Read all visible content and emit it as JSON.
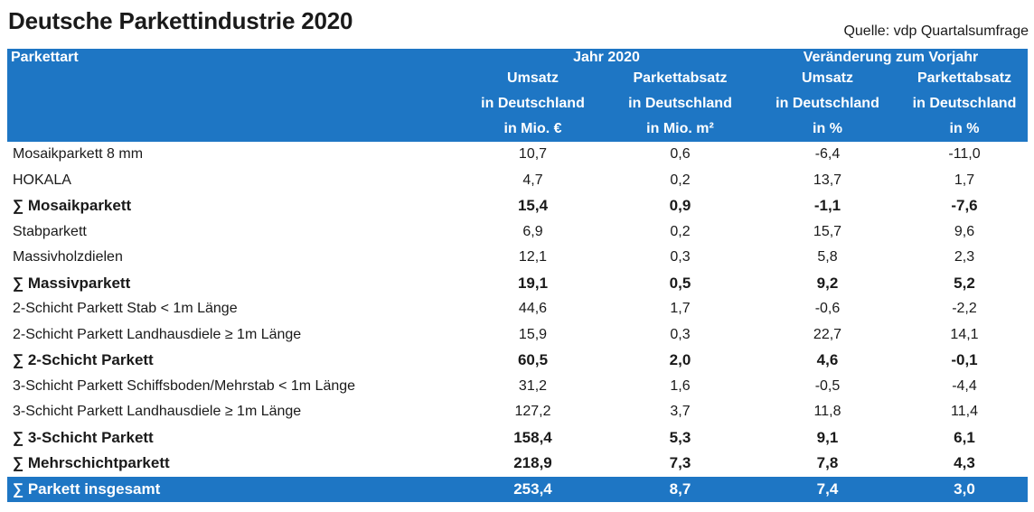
{
  "title": "Deutsche Parkettindustrie 2020",
  "source": "Quelle: vdp Quartalsumfrage",
  "header": {
    "col0": "Parkettart",
    "group1": "Jahr 2020",
    "group2": "Veränderung zum Vorjahr",
    "row2": [
      "Umsatz",
      "Parkettabsatz",
      "Umsatz",
      "Parkettabsatz"
    ],
    "row3": [
      "in Deutschland",
      "in Deutschland",
      "in Deutschland",
      "in Deutschland"
    ],
    "row4": [
      "in Mio. €",
      "in Mio. m²",
      "in %",
      "in %"
    ]
  },
  "rows": [
    {
      "label": "Mosaikparkett 8 mm",
      "v": [
        "10,7",
        "0,6",
        "-6,4",
        "-11,0"
      ],
      "style": "normal"
    },
    {
      "label": "HOKALA",
      "v": [
        "4,7",
        "0,2",
        "13,7",
        "1,7"
      ],
      "style": "normal"
    },
    {
      "label": "∑ Mosaikparkett",
      "v": [
        "15,4",
        "0,9",
        "-1,1",
        "-7,6"
      ],
      "style": "bold"
    },
    {
      "label": "Stabparkett",
      "v": [
        "6,9",
        "0,2",
        "15,7",
        "9,6"
      ],
      "style": "normal"
    },
    {
      "label": "Massivholzdielen",
      "v": [
        "12,1",
        "0,3",
        "5,8",
        "2,3"
      ],
      "style": "normal"
    },
    {
      "label": "∑ Massivparkett",
      "v": [
        "19,1",
        "0,5",
        "9,2",
        "5,2"
      ],
      "style": "bold"
    },
    {
      "label": "2-Schicht Parkett  Stab < 1m Länge",
      "v": [
        "44,6",
        "1,7",
        "-0,6",
        "-2,2"
      ],
      "style": "normal"
    },
    {
      "label": "2-Schicht Parkett Landhausdiele ≥ 1m Länge",
      "v": [
        "15,9",
        "0,3",
        "22,7",
        "14,1"
      ],
      "style": "normal"
    },
    {
      "label": "∑ 2-Schicht Parkett",
      "v": [
        "60,5",
        "2,0",
        "4,6",
        "-0,1"
      ],
      "style": "bold"
    },
    {
      "label": "3-Schicht Parkett Schiffsboden/Mehrstab < 1m Länge",
      "v": [
        "31,2",
        "1,6",
        "-0,5",
        "-4,4"
      ],
      "style": "normal"
    },
    {
      "label": "3-Schicht Parkett Landhausdiele ≥ 1m Länge",
      "v": [
        "127,2",
        "3,7",
        "11,8",
        "11,4"
      ],
      "style": "normal"
    },
    {
      "label": "∑ 3-Schicht Parkett",
      "v": [
        "158,4",
        "5,3",
        "9,1",
        "6,1"
      ],
      "style": "bold"
    },
    {
      "label": "∑ Mehrschichtparkett",
      "v": [
        "218,9",
        "7,3",
        "7,8",
        "4,3"
      ],
      "style": "bold"
    },
    {
      "label": "∑ Parkett insgesamt",
      "v": [
        "253,4",
        "8,7",
        "7,4",
        "3,0"
      ],
      "style": "total"
    }
  ]
}
